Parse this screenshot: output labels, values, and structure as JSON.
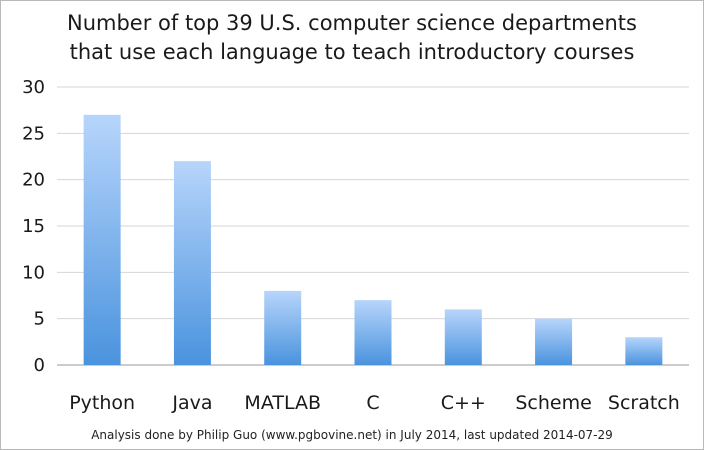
{
  "chart_data": {
    "type": "bar",
    "title_lines": [
      "Number of top 39 U.S. computer science departments",
      "that use each language to teach introductory courses"
    ],
    "categories": [
      "Python",
      "Java",
      "MATLAB",
      "C",
      "C++",
      "Scheme",
      "Scratch"
    ],
    "values": [
      27,
      22,
      8,
      7,
      6,
      5,
      3
    ],
    "yticks": [
      "0",
      "5",
      "10",
      "15",
      "20",
      "25",
      "30"
    ],
    "ylim": [
      0,
      30
    ],
    "grid": true,
    "legend": "none",
    "xlabel": "",
    "ylabel": "",
    "bar_color_top": "#b7d5fb",
    "bar_color_bottom": "#4a93de",
    "footer": "Analysis done by Philip Guo (www.pgbovine.net) in July 2014, last updated 2014-07-29"
  }
}
